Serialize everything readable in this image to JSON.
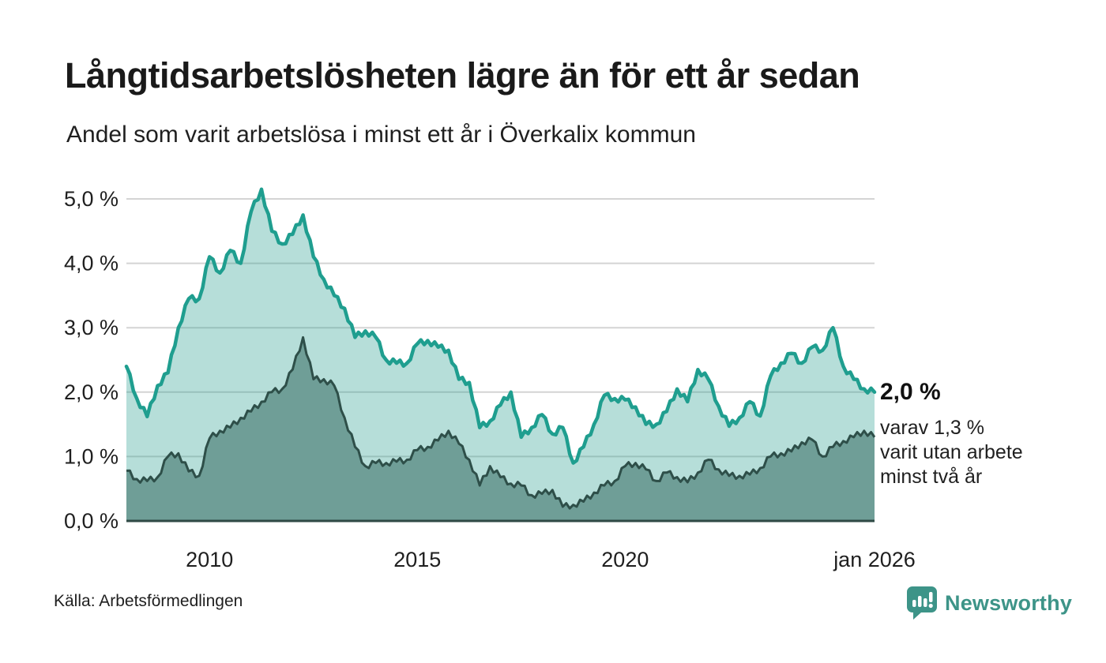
{
  "page": {
    "title": "Långtidsarbetslösheten lägre än för ett år sedan",
    "subtitle": "Andel som varit arbetslösa i minst ett år i Överkalix kommun"
  },
  "annotation": {
    "value": "2,0 %",
    "lines": [
      "varav 1,3 %",
      "varit utan arbete",
      "minst två år"
    ]
  },
  "source": {
    "label": "Källa: Arbetsförmedlingen"
  },
  "logo": {
    "name": "Newsworthy",
    "icon": "speech-bubble-bar-chart-icon",
    "color": "#3d9488"
  },
  "colors": {
    "line_total": "#1f9e8f",
    "fill_total": "rgba(42,157,143,0.34)",
    "line_two_years": "#2e4f49",
    "fill_two_years": "#6f9e97",
    "gridline": "#d4d4d4",
    "axis_line": "#2f4a45",
    "text": "#1f1f1f"
  },
  "chart_data": {
    "type": "area",
    "title": "Långtidsarbetslösheten lägre än för ett år sedan",
    "subtitle": "Andel som varit arbetslösa i minst ett år i Överkalix kommun",
    "unit": "%",
    "grid": true,
    "legend_position": "none",
    "x_start": 2008.0,
    "x_step": 0.25,
    "x_end": 2026.0,
    "xlim": [
      2008.0,
      2026.0
    ],
    "ylim": [
      0,
      5.4
    ],
    "x_axis_ticks": [
      {
        "value": 2010,
        "label": "2010"
      },
      {
        "value": 2015,
        "label": "2015"
      },
      {
        "value": 2020,
        "label": "2020"
      },
      {
        "value": 2026,
        "label": "jan 2026"
      }
    ],
    "y_axis_ticks": [
      {
        "value": 0,
        "label": "0,0 %"
      },
      {
        "value": 1,
        "label": "1,0 %"
      },
      {
        "value": 2,
        "label": "2,0 %"
      },
      {
        "value": 3,
        "label": "3,0 %"
      },
      {
        "value": 4,
        "label": "4,0 %"
      },
      {
        "value": 5,
        "label": "5,0 %"
      }
    ],
    "series": [
      {
        "name": "Arbetslösa minst ett år",
        "end_label": "2,0 %",
        "end_value": 2.0,
        "values": [
          2.4,
          1.9,
          1.62,
          2.1,
          2.3,
          3.0,
          3.45,
          3.45,
          4.1,
          3.85,
          4.2,
          4.0,
          4.8,
          5.15,
          4.5,
          4.3,
          4.45,
          4.75,
          4.1,
          3.75,
          3.5,
          3.3,
          2.85,
          2.95,
          2.85,
          2.5,
          2.45,
          2.45,
          2.75,
          2.8,
          2.7,
          2.65,
          2.2,
          2.15,
          1.45,
          1.55,
          1.8,
          2.0,
          1.3,
          1.45,
          1.65,
          1.35,
          1.45,
          0.9,
          1.15,
          1.5,
          1.95,
          1.9,
          1.88,
          1.77,
          1.5,
          1.5,
          1.7,
          2.05,
          1.85,
          2.35,
          2.2,
          1.78,
          1.47,
          1.6,
          1.85,
          1.63,
          2.25,
          2.45,
          2.6,
          2.45,
          2.7,
          2.65,
          3.0,
          2.4,
          2.2,
          2.05,
          2.0
        ]
      },
      {
        "name": "Arbetslösa minst två år",
        "end_label": "1,3 %",
        "end_value": 1.3,
        "values": [
          0.78,
          0.65,
          0.62,
          0.68,
          1.0,
          1.05,
          0.77,
          0.7,
          1.28,
          1.4,
          1.45,
          1.6,
          1.7,
          1.85,
          2.0,
          2.05,
          2.35,
          2.85,
          2.2,
          2.2,
          2.1,
          1.6,
          1.15,
          0.85,
          0.9,
          0.9,
          0.92,
          0.95,
          1.1,
          1.15,
          1.25,
          1.4,
          1.2,
          0.95,
          0.55,
          0.85,
          0.68,
          0.58,
          0.55,
          0.4,
          0.42,
          0.48,
          0.22,
          0.25,
          0.3,
          0.44,
          0.55,
          0.62,
          0.85,
          0.9,
          0.8,
          0.62,
          0.75,
          0.68,
          0.6,
          0.75,
          0.95,
          0.8,
          0.7,
          0.7,
          0.72,
          0.82,
          1.0,
          1.05,
          1.08,
          1.22,
          1.26,
          1.0,
          1.15,
          1.24,
          1.3,
          1.4,
          1.3
        ]
      }
    ]
  }
}
